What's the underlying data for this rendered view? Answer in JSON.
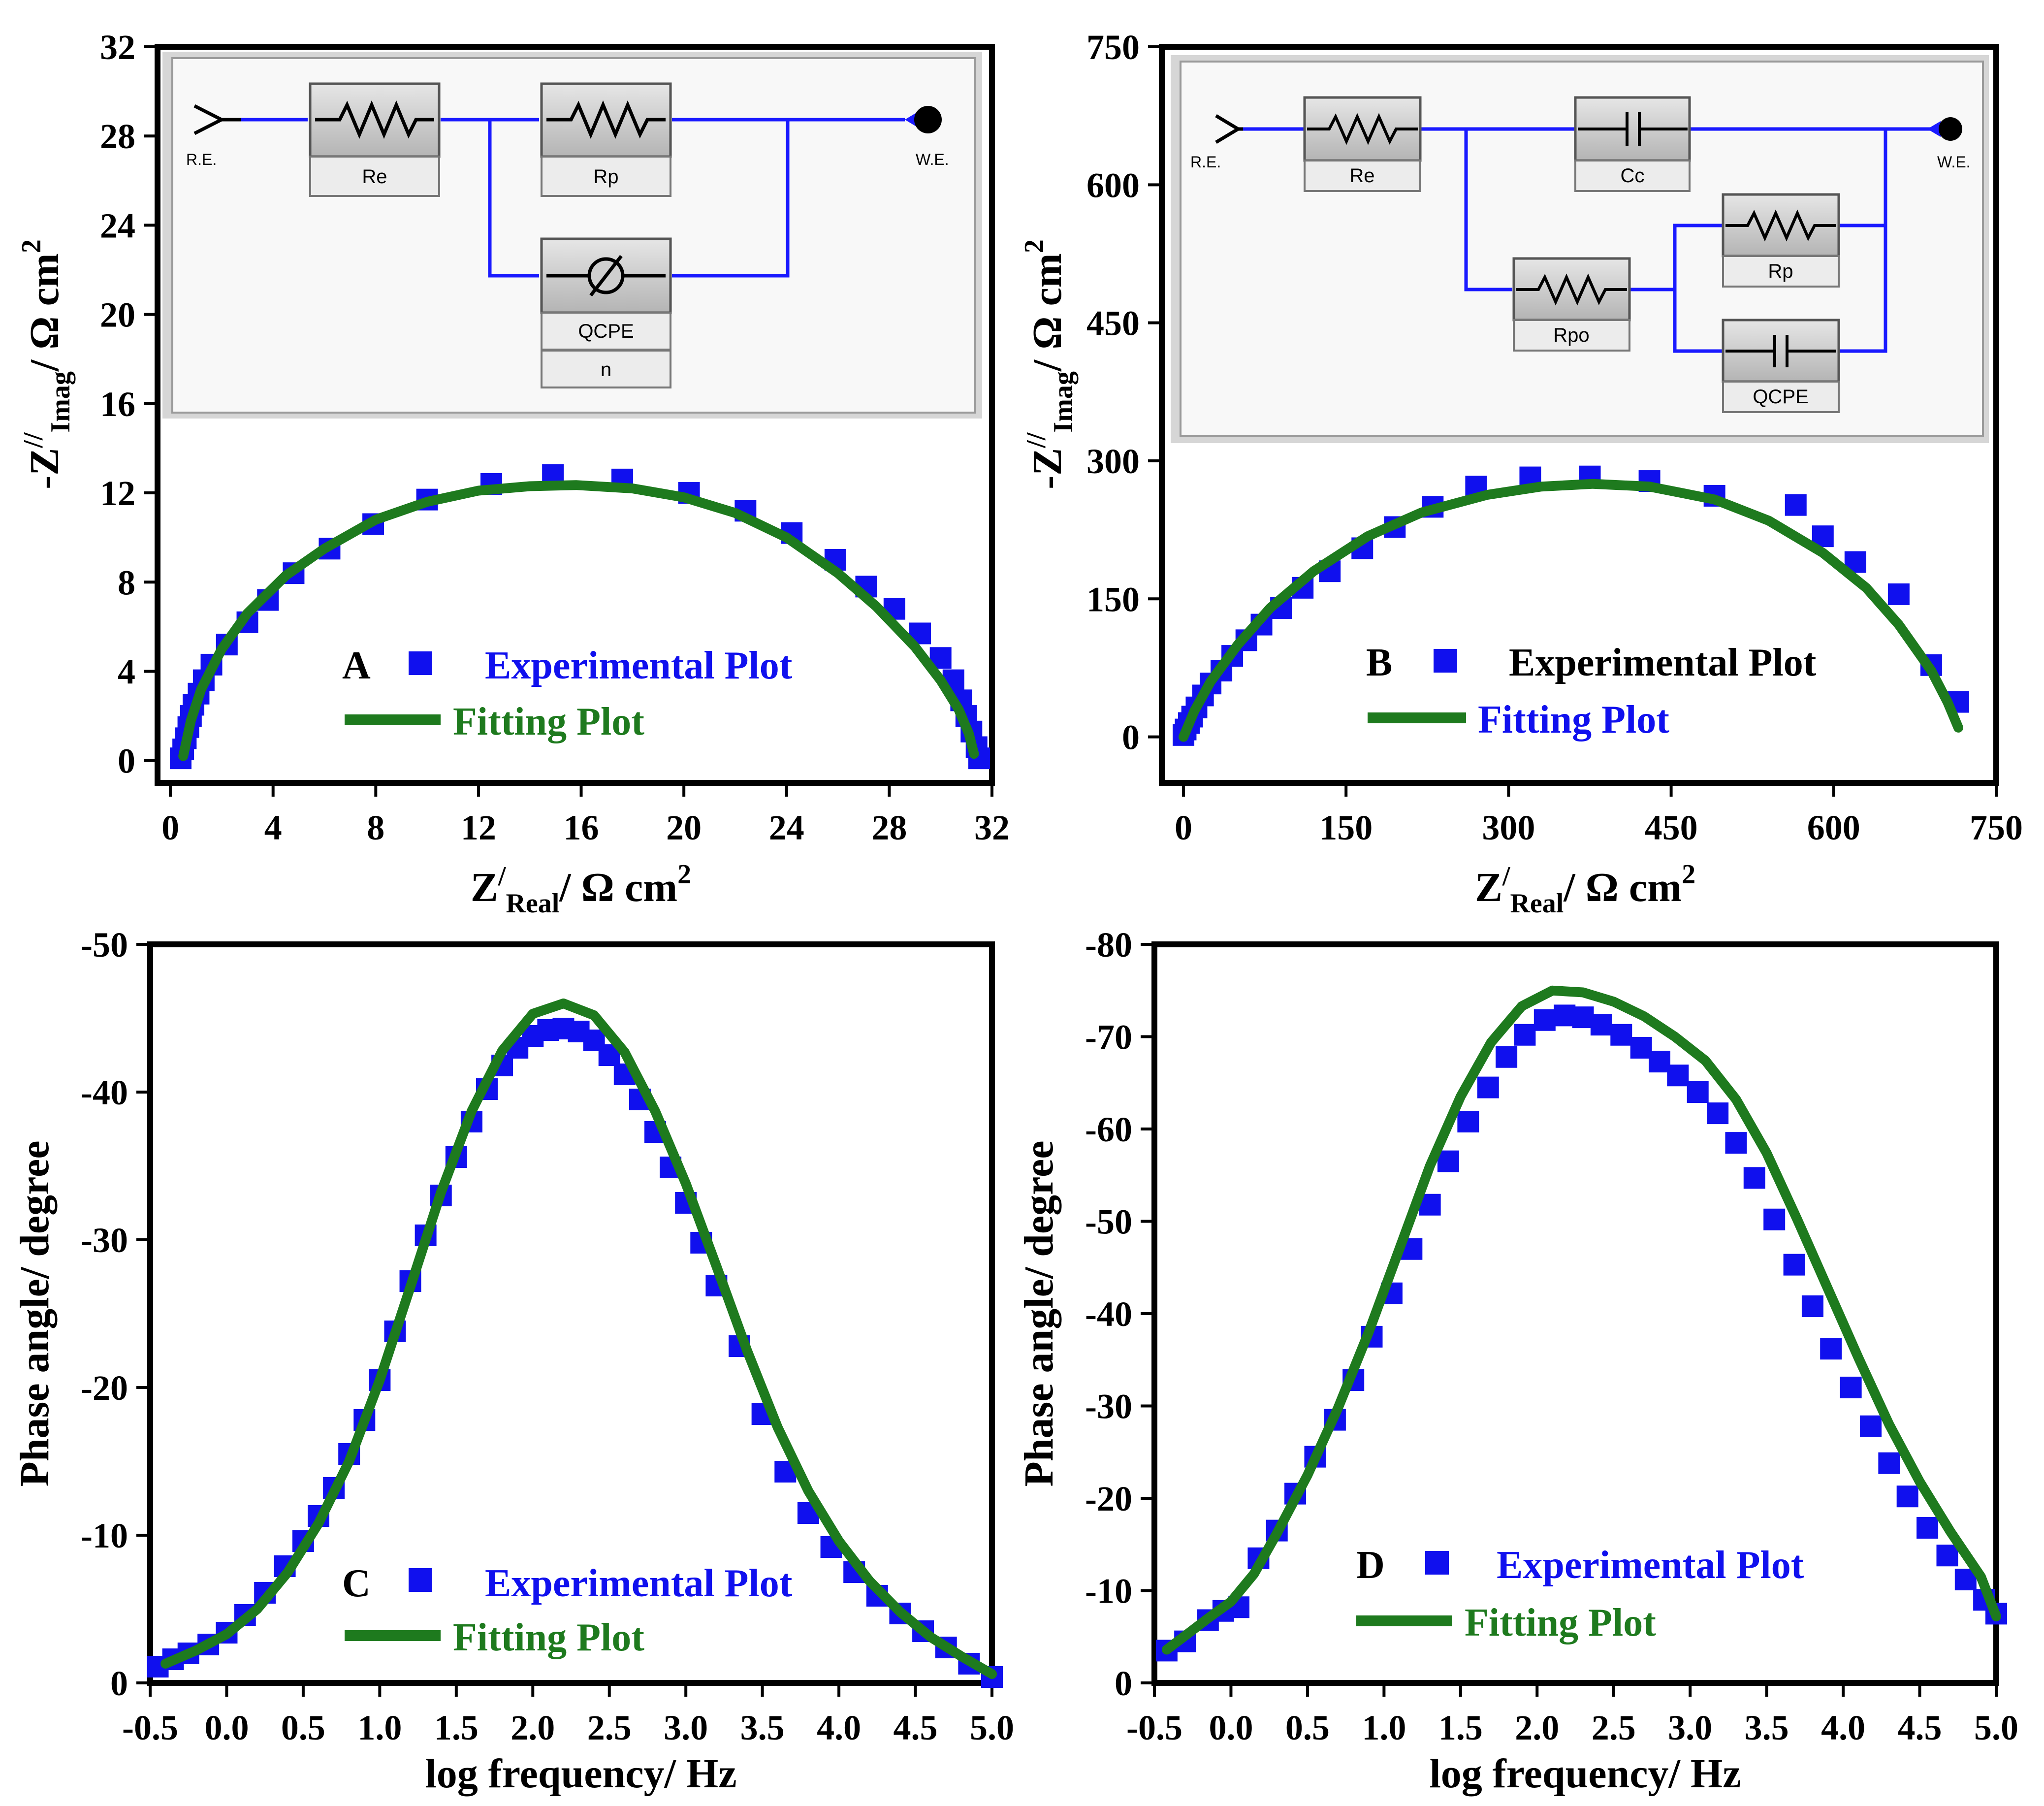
{
  "colors": {
    "experimental": "#1010ee",
    "fitting": "#1e7a1e",
    "axis": "#000000",
    "circuit_wire": "#1a1aff"
  },
  "chart_data": [
    {
      "panel": "A",
      "type": "scatter",
      "title": "",
      "xlabel": "Z",
      "xlabel_prime": "/",
      "xlabel_sub": "Real",
      "xlabel_unit": "/ Ω cm",
      "xlabel_sup": "2",
      "ylabel": "-Z",
      "ylabel_prime": "//",
      "ylabel_sub": "Imag",
      "ylabel_unit": "/ Ω cm",
      "ylabel_sup": "2",
      "xlim": [
        -0.5,
        32
      ],
      "ylim": [
        -1,
        32
      ],
      "xticks": [
        "0",
        "4",
        "8",
        "12",
        "16",
        "20",
        "24",
        "28",
        "32"
      ],
      "yticks": [
        "0",
        "4",
        "8",
        "12",
        "16",
        "20",
        "24",
        "28",
        "32"
      ],
      "legend": {
        "letter": "A",
        "experimental": "Experimental Plot",
        "fitting": "Fitting Plot"
      },
      "series": [
        {
          "name": "Experimental Plot",
          "kind": "markers",
          "x": [
            0.4,
            0.5,
            0.6,
            0.7,
            0.8,
            0.9,
            1.1,
            1.3,
            1.6,
            2.2,
            3.0,
            3.8,
            4.8,
            6.2,
            7.9,
            10.0,
            12.5,
            14.9,
            17.6,
            20.2,
            22.4,
            24.2,
            25.9,
            27.1,
            28.2,
            29.2,
            30.0,
            30.5,
            30.8,
            31.0,
            31.2,
            31.4,
            31.5
          ],
          "y": [
            0.1,
            0.5,
            1.0,
            1.5,
            2.0,
            2.5,
            3.0,
            3.6,
            4.3,
            5.2,
            6.2,
            7.2,
            8.4,
            9.5,
            10.6,
            11.7,
            12.4,
            12.8,
            12.6,
            12.0,
            11.2,
            10.2,
            9.0,
            7.8,
            6.8,
            5.7,
            4.6,
            3.6,
            2.7,
            2.0,
            1.3,
            0.6,
            0.1
          ]
        },
        {
          "name": "Fitting Plot",
          "kind": "line",
          "x": [
            0.5,
            0.8,
            1.2,
            2.0,
            3.0,
            4.5,
            6.0,
            8.0,
            10.0,
            12.0,
            14.0,
            15.8,
            18.0,
            20.0,
            22.0,
            24.0,
            26.0,
            27.5,
            29.0,
            30.0,
            30.7,
            31.1,
            31.3
          ],
          "y": [
            0.2,
            1.8,
            3.2,
            5.0,
            6.6,
            8.3,
            9.5,
            10.8,
            11.6,
            12.1,
            12.3,
            12.35,
            12.2,
            11.8,
            11.1,
            10.0,
            8.4,
            6.9,
            5.1,
            3.6,
            2.3,
            1.2,
            0.3
          ]
        }
      ]
    },
    {
      "panel": "B",
      "type": "scatter",
      "title": "",
      "xlabel": "Z",
      "xlabel_prime": "/",
      "xlabel_sub": "Real",
      "xlabel_unit": "/ Ω cm",
      "xlabel_sup": "2",
      "ylabel": "-Z",
      "ylabel_prime": "//",
      "ylabel_sub": "Imag",
      "ylabel_unit": "/ Ω cm",
      "ylabel_sup": "2",
      "xlim": [
        -20,
        750
      ],
      "ylim": [
        -50,
        750
      ],
      "xticks": [
        "0",
        "150",
        "300",
        "450",
        "600",
        "750"
      ],
      "yticks": [
        "0",
        "150",
        "300",
        "450",
        "600",
        "750"
      ],
      "legend": {
        "letter": "B",
        "experimental": "Experimental Plot",
        "fitting": "Fitting Plot"
      },
      "series": [
        {
          "name": "Experimental Plot",
          "kind": "markers",
          "x": [
            0,
            2,
            5,
            8,
            12,
            18,
            25,
            35,
            45,
            58,
            72,
            90,
            110,
            135,
            165,
            195,
            230,
            270,
            320,
            375,
            430,
            490,
            565,
            590,
            620,
            660,
            690,
            715
          ],
          "y": [
            2,
            8,
            15,
            22,
            32,
            45,
            58,
            72,
            88,
            105,
            122,
            140,
            162,
            180,
            205,
            228,
            250,
            272,
            282,
            283,
            278,
            262,
            252,
            218,
            190,
            155,
            78,
            38
          ]
        },
        {
          "name": "Fitting Plot",
          "kind": "line",
          "x": [
            0,
            10,
            25,
            50,
            80,
            120,
            170,
            220,
            280,
            330,
            378,
            430,
            490,
            540,
            590,
            630,
            660,
            690,
            705,
            715
          ],
          "y": [
            0,
            28,
            60,
            100,
            140,
            180,
            218,
            244,
            263,
            272,
            275,
            272,
            258,
            235,
            200,
            162,
            122,
            72,
            38,
            10
          ]
        }
      ]
    },
    {
      "panel": "C",
      "type": "scatter",
      "title": "",
      "xlabel": "log frequency/ Hz",
      "ylabel": "Phase angle/ degree",
      "xlim": [
        -0.5,
        5.0
      ],
      "ylim": [
        0,
        -50
      ],
      "xticks": [
        "-0.5",
        "0.0",
        "0.5",
        "1.0",
        "1.5",
        "2.0",
        "2.5",
        "3.0",
        "3.5",
        "4.0",
        "4.5",
        "5.0"
      ],
      "yticks": [
        "0",
        "-10",
        "-20",
        "-30",
        "-40",
        "-50"
      ],
      "legend": {
        "letter": "C",
        "experimental": "Experimental Plot",
        "fitting": "Fitting Plot"
      },
      "series": [
        {
          "name": "Experimental Plot",
          "kind": "markers",
          "x": [
            -0.45,
            -0.35,
            -0.25,
            -0.12,
            0.0,
            0.12,
            0.25,
            0.38,
            0.5,
            0.6,
            0.7,
            0.8,
            0.9,
            1.0,
            1.1,
            1.2,
            1.3,
            1.4,
            1.5,
            1.6,
            1.7,
            1.8,
            1.9,
            2.0,
            2.1,
            2.2,
            2.3,
            2.4,
            2.5,
            2.6,
            2.7,
            2.8,
            2.9,
            3.0,
            3.1,
            3.2,
            3.35,
            3.5,
            3.65,
            3.8,
            3.95,
            4.1,
            4.25,
            4.4,
            4.55,
            4.7,
            4.85,
            5.0
          ],
          "y": [
            -1.1,
            -1.6,
            -2.0,
            -2.6,
            -3.4,
            -4.6,
            -6.1,
            -7.9,
            -9.6,
            -11.3,
            -13.2,
            -15.5,
            -17.8,
            -20.5,
            -23.8,
            -27.2,
            -30.3,
            -33.0,
            -35.6,
            -38.0,
            -40.2,
            -41.8,
            -43.0,
            -43.8,
            -44.2,
            -44.3,
            -44.1,
            -43.5,
            -42.5,
            -41.2,
            -39.5,
            -37.3,
            -34.9,
            -32.5,
            -29.8,
            -26.9,
            -22.8,
            -18.2,
            -14.3,
            -11.5,
            -9.2,
            -7.5,
            -5.9,
            -4.7,
            -3.5,
            -2.4,
            -1.3,
            -0.4
          ]
        },
        {
          "name": "Fitting Plot",
          "kind": "line",
          "x": [
            -0.4,
            -0.2,
            0.0,
            0.2,
            0.4,
            0.6,
            0.8,
            1.0,
            1.2,
            1.4,
            1.6,
            1.8,
            2.0,
            2.2,
            2.4,
            2.6,
            2.8,
            3.0,
            3.2,
            3.4,
            3.6,
            3.8,
            4.0,
            4.2,
            4.4,
            4.6,
            4.8,
            5.0
          ],
          "y": [
            -1.3,
            -2.2,
            -3.3,
            -5.0,
            -7.5,
            -10.8,
            -15.0,
            -20.5,
            -26.8,
            -33.2,
            -38.7,
            -42.8,
            -45.3,
            -46.0,
            -45.2,
            -42.7,
            -38.7,
            -33.8,
            -28.2,
            -22.5,
            -17.3,
            -13.0,
            -9.6,
            -6.9,
            -4.8,
            -3.1,
            -1.8,
            -0.6
          ]
        }
      ]
    },
    {
      "panel": "D",
      "type": "scatter",
      "title": "",
      "xlabel": "log frequency/ Hz",
      "ylabel": "Phase angle/ degree",
      "xlim": [
        -0.5,
        5.0
      ],
      "ylim": [
        0,
        -80
      ],
      "xticks": [
        "-0.5",
        "0.0",
        "0.5",
        "1.0",
        "1.5",
        "2.0",
        "2.5",
        "3.0",
        "3.5",
        "4.0",
        "4.5",
        "5.0"
      ],
      "yticks": [
        "0",
        "-10",
        "-20",
        "-30",
        "-40",
        "-50",
        "-60",
        "-70",
        "-80"
      ],
      "legend": {
        "letter": "D",
        "experimental": "Experimental Plot",
        "fitting": "Fitting Plot"
      },
      "series": [
        {
          "name": "Experimental Plot",
          "kind": "markers",
          "x": [
            -0.42,
            -0.3,
            -0.15,
            -0.05,
            0.05,
            0.18,
            0.3,
            0.42,
            0.55,
            0.68,
            0.8,
            0.92,
            1.05,
            1.18,
            1.3,
            1.42,
            1.55,
            1.68,
            1.8,
            1.92,
            2.05,
            2.18,
            2.3,
            2.42,
            2.55,
            2.68,
            2.8,
            2.92,
            3.05,
            3.18,
            3.3,
            3.42,
            3.55,
            3.68,
            3.8,
            3.92,
            4.05,
            4.18,
            4.3,
            4.42,
            4.55,
            4.68,
            4.8,
            4.92,
            5.0
          ],
          "y": [
            -3.5,
            -4.5,
            -6.8,
            -7.8,
            -8.2,
            -13.5,
            -16.5,
            -20.5,
            -24.5,
            -28.5,
            -32.8,
            -37.5,
            -42.2,
            -47.0,
            -51.8,
            -56.5,
            -60.8,
            -64.5,
            -67.8,
            -70.2,
            -71.8,
            -72.3,
            -72.1,
            -71.3,
            -70.2,
            -68.8,
            -67.3,
            -65.8,
            -64.0,
            -61.7,
            -58.5,
            -54.7,
            -50.2,
            -45.3,
            -40.8,
            -36.2,
            -32.0,
            -27.8,
            -23.8,
            -20.2,
            -16.8,
            -13.8,
            -11.2,
            -9.0,
            -7.5
          ]
        },
        {
          "name": "Fitting Plot",
          "kind": "line",
          "x": [
            -0.42,
            -0.3,
            -0.15,
            0.0,
            0.15,
            0.3,
            0.5,
            0.7,
            0.9,
            1.1,
            1.3,
            1.5,
            1.7,
            1.9,
            2.1,
            2.3,
            2.5,
            2.7,
            2.9,
            3.1,
            3.3,
            3.5,
            3.7,
            3.9,
            4.1,
            4.3,
            4.5,
            4.7,
            4.9,
            5.0
          ],
          "y": [
            -3.6,
            -5.1,
            -7.0,
            -8.8,
            -11.8,
            -16.2,
            -22.5,
            -29.8,
            -38.0,
            -47.0,
            -56.0,
            -63.5,
            -69.4,
            -73.3,
            -75.0,
            -74.8,
            -73.8,
            -72.2,
            -70.0,
            -67.4,
            -63.2,
            -57.4,
            -50.2,
            -42.7,
            -35.2,
            -28.0,
            -21.8,
            -16.4,
            -11.5,
            -7.2
          ]
        }
      ]
    }
  ],
  "circuits": {
    "A": {
      "re": "R.E.",
      "we": "W.E.",
      "labels": [
        "Re",
        "Rp",
        "QCPE",
        "n"
      ]
    },
    "B": {
      "re": "R.E.",
      "we": "W.E.",
      "labels": [
        "Re",
        "Cc",
        "Rpo",
        "Rp",
        "QCPE"
      ]
    }
  }
}
